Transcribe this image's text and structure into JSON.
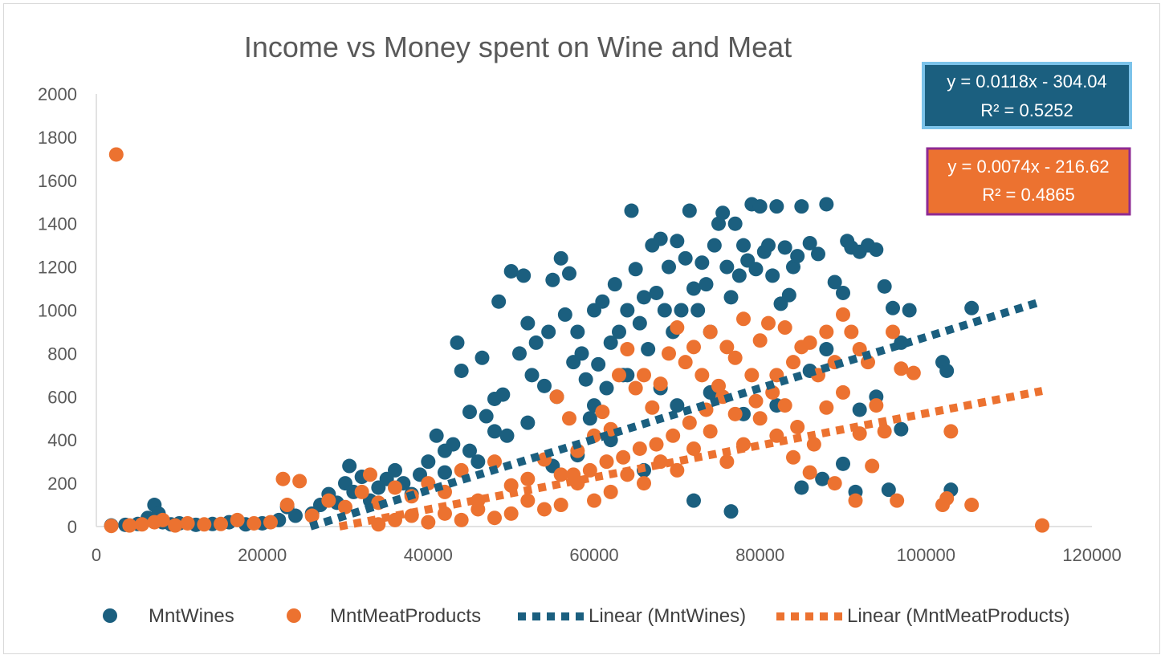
{
  "colors": {
    "wines": "#1b5f7f",
    "meat": "#ec7230",
    "axis": "#d9d9d9",
    "text": "#595959",
    "eq_wines_border": "#7cc3ea",
    "eq_meat_border": "#8e2a93"
  },
  "chart_data": {
    "type": "scatter",
    "title": "Income vs Money spent on Wine and Meat",
    "xlabel": "",
    "ylabel": "",
    "xlim": [
      0,
      120000
    ],
    "ylim": [
      0,
      2000
    ],
    "x_ticks": [
      "0",
      "20000",
      "40000",
      "60000",
      "80000",
      "100000",
      "120000"
    ],
    "y_ticks": [
      "0",
      "200",
      "400",
      "600",
      "800",
      "1000",
      "1200",
      "1400",
      "1600",
      "1800",
      "2000"
    ],
    "grid": false,
    "legend_position": "bottom",
    "legend": [
      "MntWines",
      "MntMeatProducts",
      "Linear (MntWines)",
      "Linear (MntMeatProducts)"
    ],
    "series": [
      {
        "name": "MntWines",
        "color": "#1b5f7f",
        "points": [
          [
            1800,
            5
          ],
          [
            3500,
            8
          ],
          [
            5000,
            12
          ],
          [
            6200,
            40
          ],
          [
            7000,
            100
          ],
          [
            7500,
            60
          ],
          [
            8000,
            20
          ],
          [
            9000,
            10
          ],
          [
            10000,
            15
          ],
          [
            12000,
            8
          ],
          [
            14000,
            12
          ],
          [
            16000,
            20
          ],
          [
            18000,
            10
          ],
          [
            20000,
            15
          ],
          [
            22000,
            30
          ],
          [
            23000,
            90
          ],
          [
            24000,
            50
          ],
          [
            26000,
            60
          ],
          [
            27000,
            100
          ],
          [
            28000,
            150
          ],
          [
            29000,
            110
          ],
          [
            30000,
            200
          ],
          [
            30500,
            280
          ],
          [
            31000,
            160
          ],
          [
            32000,
            230
          ],
          [
            33000,
            120
          ],
          [
            34000,
            180
          ],
          [
            35000,
            220
          ],
          [
            36000,
            260
          ],
          [
            37000,
            200
          ],
          [
            38000,
            150
          ],
          [
            39000,
            240
          ],
          [
            40000,
            300
          ],
          [
            41000,
            420
          ],
          [
            42000,
            350
          ],
          [
            43000,
            380
          ],
          [
            43500,
            850
          ],
          [
            44000,
            720
          ],
          [
            45000,
            530
          ],
          [
            46000,
            300
          ],
          [
            46500,
            780
          ],
          [
            47000,
            510
          ],
          [
            48000,
            590
          ],
          [
            48500,
            1040
          ],
          [
            49000,
            610
          ],
          [
            49500,
            420
          ],
          [
            50000,
            1180
          ],
          [
            51000,
            800
          ],
          [
            51500,
            1160
          ],
          [
            52000,
            940
          ],
          [
            52500,
            700
          ],
          [
            53000,
            850
          ],
          [
            54000,
            650
          ],
          [
            54500,
            900
          ],
          [
            55000,
            1140
          ],
          [
            55500,
            600
          ],
          [
            56000,
            1240
          ],
          [
            56500,
            980
          ],
          [
            57000,
            1170
          ],
          [
            57500,
            760
          ],
          [
            58000,
            900
          ],
          [
            58500,
            800
          ],
          [
            59000,
            680
          ],
          [
            59500,
            500
          ],
          [
            60000,
            1000
          ],
          [
            60500,
            750
          ],
          [
            61000,
            1040
          ],
          [
            61500,
            640
          ],
          [
            62000,
            850
          ],
          [
            62500,
            1120
          ],
          [
            63000,
            900
          ],
          [
            63500,
            700
          ],
          [
            64000,
            1000
          ],
          [
            64500,
            1460
          ],
          [
            65000,
            1190
          ],
          [
            65500,
            940
          ],
          [
            66000,
            1060
          ],
          [
            66500,
            820
          ],
          [
            67000,
            1300
          ],
          [
            67500,
            1080
          ],
          [
            68000,
            1330
          ],
          [
            68500,
            1000
          ],
          [
            69000,
            1200
          ],
          [
            69500,
            900
          ],
          [
            70000,
            1320
          ],
          [
            70500,
            1000
          ],
          [
            71000,
            1240
          ],
          [
            71500,
            1460
          ],
          [
            72000,
            1100
          ],
          [
            72500,
            1000
          ],
          [
            73000,
            1220
          ],
          [
            73500,
            1120
          ],
          [
            74000,
            900
          ],
          [
            74500,
            1300
          ],
          [
            75000,
            1400
          ],
          [
            75500,
            1450
          ],
          [
            76000,
            1200
          ],
          [
            76500,
            1060
          ],
          [
            77000,
            1400
          ],
          [
            77500,
            1160
          ],
          [
            78000,
            1300
          ],
          [
            78500,
            1230
          ],
          [
            79000,
            1490
          ],
          [
            79500,
            1190
          ],
          [
            80000,
            1480
          ],
          [
            80500,
            1270
          ],
          [
            81000,
            1300
          ],
          [
            81500,
            1160
          ],
          [
            82000,
            1480
          ],
          [
            82500,
            1030
          ],
          [
            83000,
            1290
          ],
          [
            83500,
            1070
          ],
          [
            84000,
            1200
          ],
          [
            84500,
            1250
          ],
          [
            85000,
            1480
          ],
          [
            86000,
            1310
          ],
          [
            87000,
            1260
          ],
          [
            88000,
            1490
          ],
          [
            89000,
            1130
          ],
          [
            90000,
            1080
          ],
          [
            90500,
            1320
          ],
          [
            91000,
            1290
          ],
          [
            92000,
            1270
          ],
          [
            93000,
            1300
          ],
          [
            94000,
            1280
          ],
          [
            95000,
            1110
          ],
          [
            96000,
            1010
          ],
          [
            97000,
            850
          ],
          [
            98000,
            1000
          ],
          [
            102000,
            760
          ],
          [
            102500,
            720
          ],
          [
            103000,
            170
          ],
          [
            105500,
            1010
          ],
          [
            95500,
            170
          ],
          [
            97000,
            450
          ],
          [
            90000,
            290
          ],
          [
            91500,
            160
          ],
          [
            87500,
            220
          ],
          [
            85000,
            180
          ],
          [
            76500,
            70
          ],
          [
            72000,
            120
          ],
          [
            66000,
            260
          ],
          [
            62000,
            400
          ],
          [
            58000,
            330
          ],
          [
            55000,
            280
          ],
          [
            52000,
            480
          ],
          [
            48000,
            440
          ],
          [
            45000,
            350
          ],
          [
            42000,
            250
          ],
          [
            78000,
            520
          ],
          [
            74000,
            620
          ],
          [
            70000,
            560
          ],
          [
            68000,
            640
          ],
          [
            64000,
            700
          ],
          [
            60000,
            560
          ],
          [
            82000,
            560
          ],
          [
            86000,
            720
          ],
          [
            88000,
            820
          ],
          [
            92000,
            540
          ],
          [
            94000,
            600
          ]
        ]
      },
      {
        "name": "MntMeatProducts",
        "color": "#ec7230",
        "points": [
          [
            1800,
            3
          ],
          [
            2400,
            1720
          ],
          [
            4000,
            5
          ],
          [
            5500,
            10
          ],
          [
            7000,
            20
          ],
          [
            8000,
            30
          ],
          [
            9500,
            5
          ],
          [
            11000,
            15
          ],
          [
            13000,
            10
          ],
          [
            15000,
            12
          ],
          [
            17000,
            30
          ],
          [
            19000,
            15
          ],
          [
            21000,
            20
          ],
          [
            22500,
            220
          ],
          [
            24500,
            210
          ],
          [
            23000,
            100
          ],
          [
            26000,
            50
          ],
          [
            28000,
            120
          ],
          [
            30000,
            90
          ],
          [
            32000,
            160
          ],
          [
            33000,
            240
          ],
          [
            34000,
            110
          ],
          [
            36000,
            180
          ],
          [
            38000,
            140
          ],
          [
            40000,
            200
          ],
          [
            42000,
            160
          ],
          [
            44000,
            260
          ],
          [
            46000,
            120
          ],
          [
            48000,
            300
          ],
          [
            50000,
            190
          ],
          [
            52000,
            220
          ],
          [
            54000,
            310
          ],
          [
            55500,
            600
          ],
          [
            56000,
            240
          ],
          [
            57000,
            500
          ],
          [
            58000,
            350
          ],
          [
            60000,
            420
          ],
          [
            61000,
            530
          ],
          [
            62000,
            450
          ],
          [
            63000,
            700
          ],
          [
            64000,
            820
          ],
          [
            65000,
            640
          ],
          [
            66000,
            700
          ],
          [
            67000,
            550
          ],
          [
            68000,
            660
          ],
          [
            69000,
            800
          ],
          [
            70000,
            920
          ],
          [
            71000,
            760
          ],
          [
            72000,
            830
          ],
          [
            73000,
            700
          ],
          [
            74000,
            900
          ],
          [
            75000,
            650
          ],
          [
            76000,
            830
          ],
          [
            77000,
            780
          ],
          [
            78000,
            960
          ],
          [
            79000,
            700
          ],
          [
            80000,
            860
          ],
          [
            81000,
            940
          ],
          [
            82000,
            700
          ],
          [
            83000,
            920
          ],
          [
            84000,
            760
          ],
          [
            85000,
            830
          ],
          [
            86000,
            850
          ],
          [
            87000,
            700
          ],
          [
            88000,
            900
          ],
          [
            89000,
            760
          ],
          [
            90000,
            980
          ],
          [
            91000,
            900
          ],
          [
            92000,
            820
          ],
          [
            93000,
            760
          ],
          [
            94000,
            560
          ],
          [
            95000,
            440
          ],
          [
            96000,
            900
          ],
          [
            97000,
            730
          ],
          [
            98500,
            710
          ],
          [
            102000,
            100
          ],
          [
            102500,
            130
          ],
          [
            103000,
            440
          ],
          [
            105500,
            100
          ],
          [
            114000,
            5
          ],
          [
            96500,
            120
          ],
          [
            91500,
            120
          ],
          [
            89000,
            200
          ],
          [
            86000,
            250
          ],
          [
            84000,
            320
          ],
          [
            82000,
            420
          ],
          [
            80000,
            500
          ],
          [
            78000,
            380
          ],
          [
            76000,
            300
          ],
          [
            74000,
            440
          ],
          [
            72000,
            360
          ],
          [
            70000,
            260
          ],
          [
            68000,
            300
          ],
          [
            66000,
            200
          ],
          [
            64000,
            240
          ],
          [
            62000,
            160
          ],
          [
            60000,
            120
          ],
          [
            58000,
            200
          ],
          [
            56000,
            100
          ],
          [
            54000,
            80
          ],
          [
            52000,
            120
          ],
          [
            50000,
            60
          ],
          [
            48000,
            40
          ],
          [
            46000,
            80
          ],
          [
            44000,
            30
          ],
          [
            42000,
            60
          ],
          [
            40000,
            20
          ],
          [
            38000,
            50
          ],
          [
            36000,
            30
          ],
          [
            34000,
            10
          ],
          [
            88000,
            550
          ],
          [
            90000,
            620
          ],
          [
            92000,
            430
          ],
          [
            93500,
            280
          ],
          [
            86500,
            380
          ],
          [
            84500,
            460
          ],
          [
            83000,
            560
          ],
          [
            81500,
            620
          ],
          [
            79500,
            580
          ],
          [
            77000,
            520
          ],
          [
            75500,
            600
          ],
          [
            73500,
            540
          ],
          [
            71500,
            480
          ],
          [
            69500,
            420
          ],
          [
            67500,
            380
          ],
          [
            65500,
            360
          ],
          [
            63500,
            320
          ],
          [
            61500,
            300
          ],
          [
            59500,
            260
          ],
          [
            57500,
            240
          ]
        ]
      }
    ],
    "trendlines": [
      {
        "name": "Linear (MntWines)",
        "color": "#1b5f7f",
        "slope": 0.0118,
        "intercept": -304.04,
        "x_range": [
          25800,
          114000
        ]
      },
      {
        "name": "Linear (MntMeatProducts)",
        "color": "#ec7230",
        "slope": 0.0074,
        "intercept": -216.62,
        "x_range": [
          29300,
          114000
        ]
      }
    ],
    "annotations": {
      "wines_eq": "y = 0.0118x - 304.04",
      "wines_r2": "R² = 0.5252",
      "meat_eq": "y = 0.0074x - 216.62",
      "meat_r2": "R² = 0.4865"
    }
  }
}
